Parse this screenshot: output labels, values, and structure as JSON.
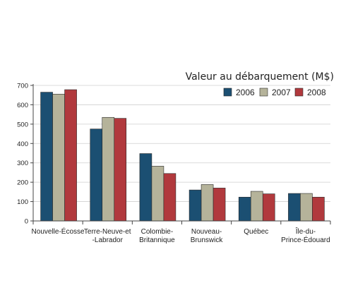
{
  "chart_data": {
    "type": "bar",
    "title": "Valeur au débarquement (M$)",
    "categories": [
      [
        "Nouvelle-Écosse"
      ],
      [
        "Terre-Neuve-et",
        "-Labrador"
      ],
      [
        "Colombie-",
        "Britannique"
      ],
      [
        "Nouveau-",
        "Brunswick"
      ],
      [
        "Québec"
      ],
      [
        "Île-du-",
        "Prince-Édouard"
      ]
    ],
    "series": [
      {
        "name": "2006",
        "color": "#1b4f72",
        "values": [
          665,
          475,
          348,
          160,
          123,
          142
        ]
      },
      {
        "name": "2007",
        "color": "#b5b39a",
        "values": [
          655,
          535,
          283,
          188,
          153,
          142
        ]
      },
      {
        "name": "2008",
        "color": "#b1393d",
        "values": [
          678,
          530,
          245,
          170,
          140,
          123
        ]
      }
    ],
    "ylim": [
      0,
      700
    ],
    "yticks": [
      0,
      100,
      200,
      300,
      400,
      500,
      600,
      700
    ],
    "grid": true,
    "legend_position": "top-right"
  }
}
